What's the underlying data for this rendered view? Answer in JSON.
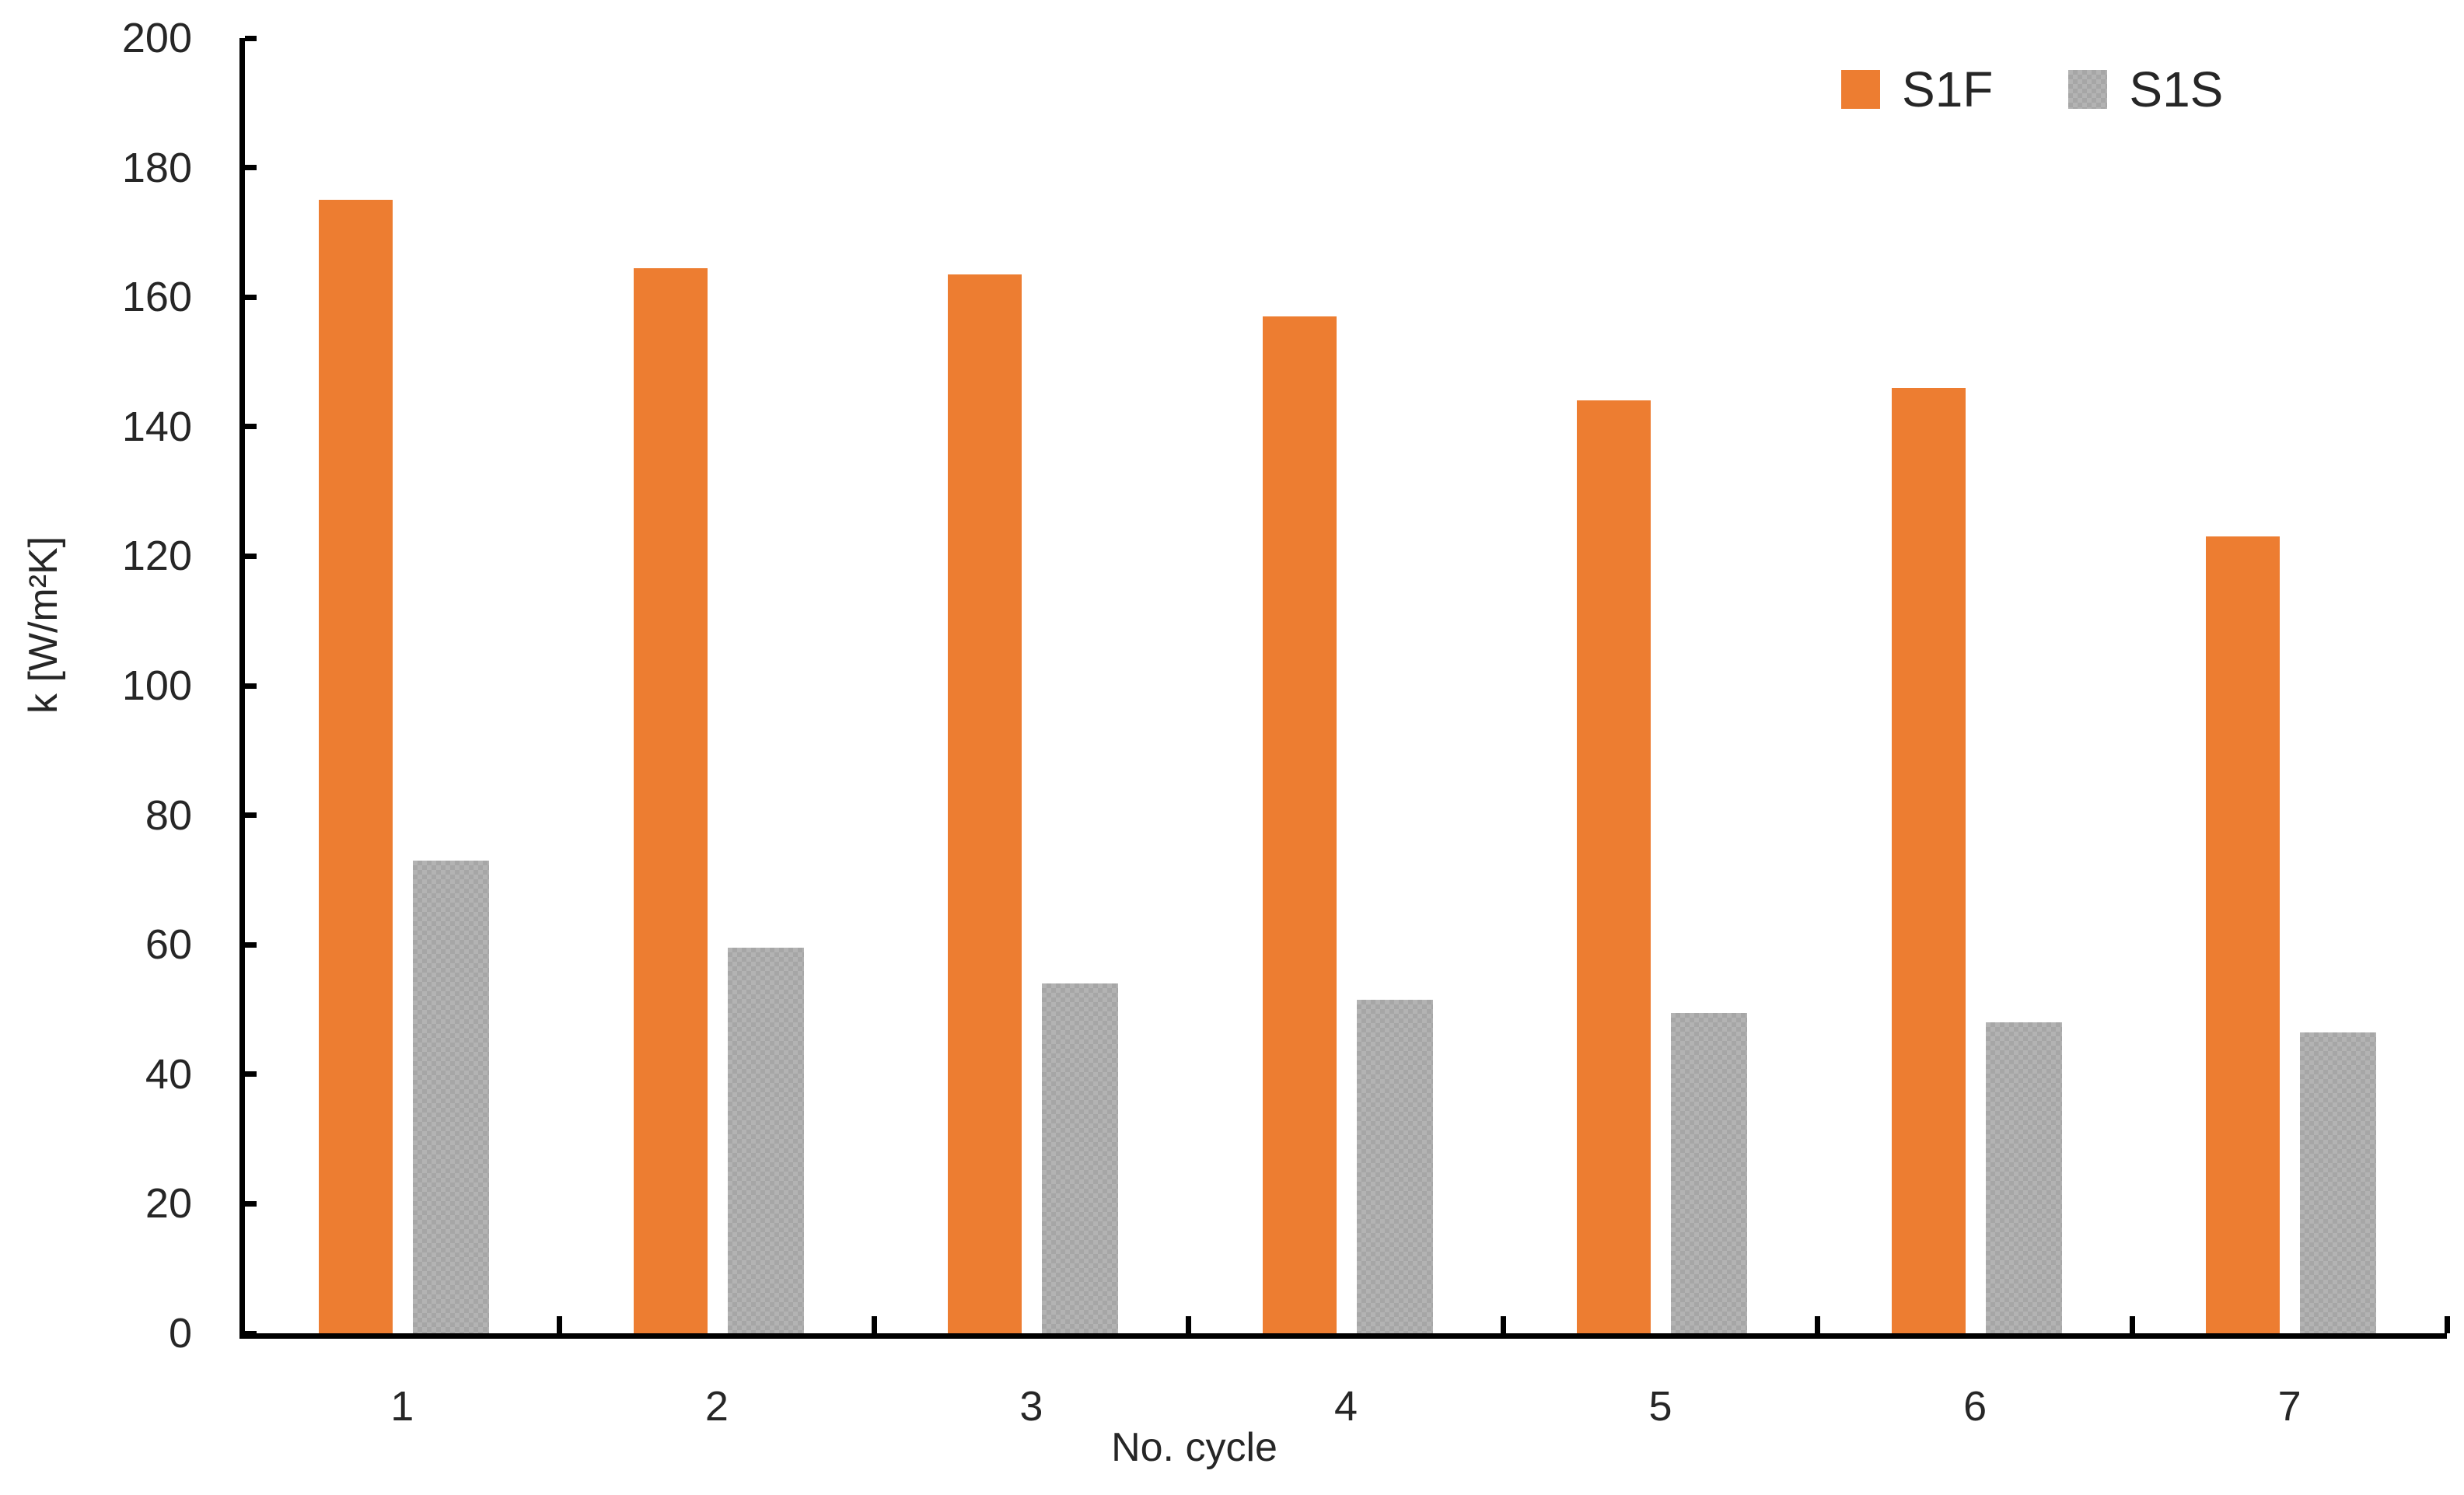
{
  "chart_data": {
    "type": "bar",
    "title": "",
    "categories": [
      "1",
      "2",
      "3",
      "4",
      "5",
      "6",
      "7"
    ],
    "series": [
      {
        "name": "S1F",
        "pattern": "solid",
        "color": "#ED7D31",
        "values": [
          175,
          164.5,
          163.5,
          157,
          144,
          146,
          123
        ]
      },
      {
        "name": "S1S",
        "pattern": "checker",
        "color": "#B3B3B3",
        "pattern_color": "#A6A6A6",
        "values": [
          73,
          59.5,
          54,
          51.5,
          49.5,
          48,
          46.5
        ]
      }
    ],
    "xlabel": "No. cycle",
    "ylabel": "k [W/m²K]",
    "ylim": [
      0,
      200
    ],
    "ytick_step": 20,
    "yticks": [
      "0",
      "20",
      "40",
      "60",
      "80",
      "100",
      "120",
      "140",
      "160",
      "180",
      "200"
    ],
    "grid": false,
    "legend_position": "top-right",
    "axis_color": "#000000",
    "text_color": "#262626"
  }
}
